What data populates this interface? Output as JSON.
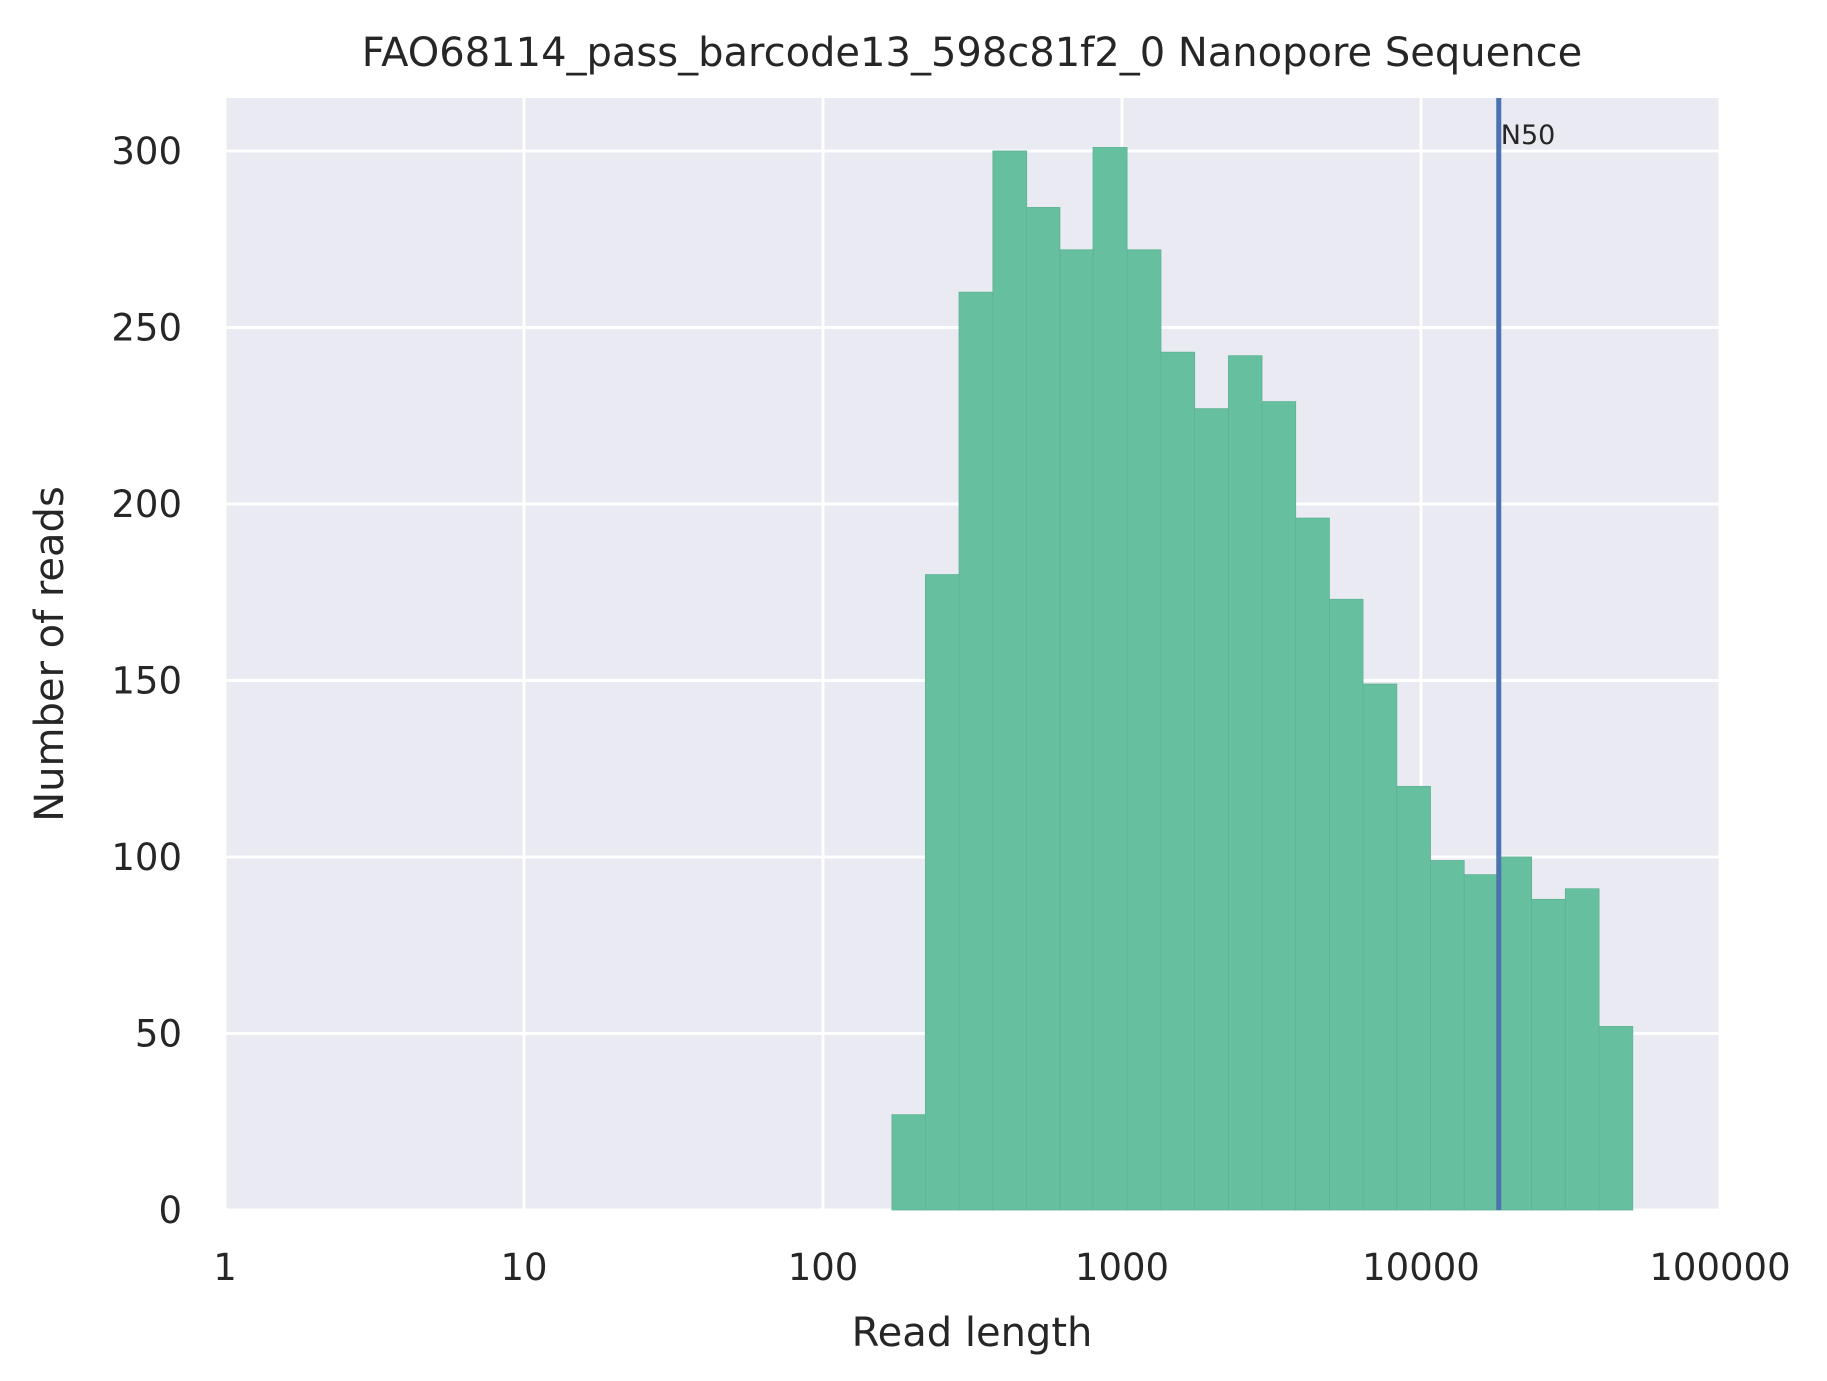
{
  "chart_data": {
    "type": "bar",
    "title": "FAO68114_pass_barcode13_598c81f2_0 Nanopore Sequence",
    "xlabel": "Read length",
    "ylabel": "Number of reads",
    "x_scale": "log",
    "xlim": [
      1,
      100000
    ],
    "ylim": [
      0,
      315
    ],
    "grid": true,
    "x_ticks": [
      {
        "value": 1,
        "label": "1"
      },
      {
        "value": 10,
        "label": "10"
      },
      {
        "value": 100,
        "label": "100"
      },
      {
        "value": 1000,
        "label": "1000"
      },
      {
        "value": 10000,
        "label": "10000"
      },
      {
        "value": 100000,
        "label": "100000"
      }
    ],
    "y_ticks": [
      {
        "value": 0,
        "label": "0"
      },
      {
        "value": 50,
        "label": "50"
      },
      {
        "value": 100,
        "label": "100"
      },
      {
        "value": 150,
        "label": "150"
      },
      {
        "value": 200,
        "label": "200"
      },
      {
        "value": 250,
        "label": "250"
      },
      {
        "value": 300,
        "label": "300"
      }
    ],
    "bin_edges": [
      170,
      220,
      285,
      370,
      480,
      620,
      800,
      1040,
      1350,
      1750,
      2270,
      2940,
      3810,
      4940,
      6400,
      8300,
      10760,
      13950,
      18080,
      23440,
      30390,
      39400,
      51080
    ],
    "values": [
      27,
      180,
      260,
      300,
      284,
      272,
      301,
      272,
      243,
      227,
      242,
      229,
      196,
      173,
      149,
      120,
      99,
      95,
      100,
      88,
      91,
      52
    ],
    "n50": {
      "value": 18200,
      "label": "N50"
    },
    "colors": {
      "bars": "#66bf9f",
      "n50_line": "#4c72b0",
      "plot_bg": "#eaeaf2",
      "grid": "#ffffff"
    }
  }
}
